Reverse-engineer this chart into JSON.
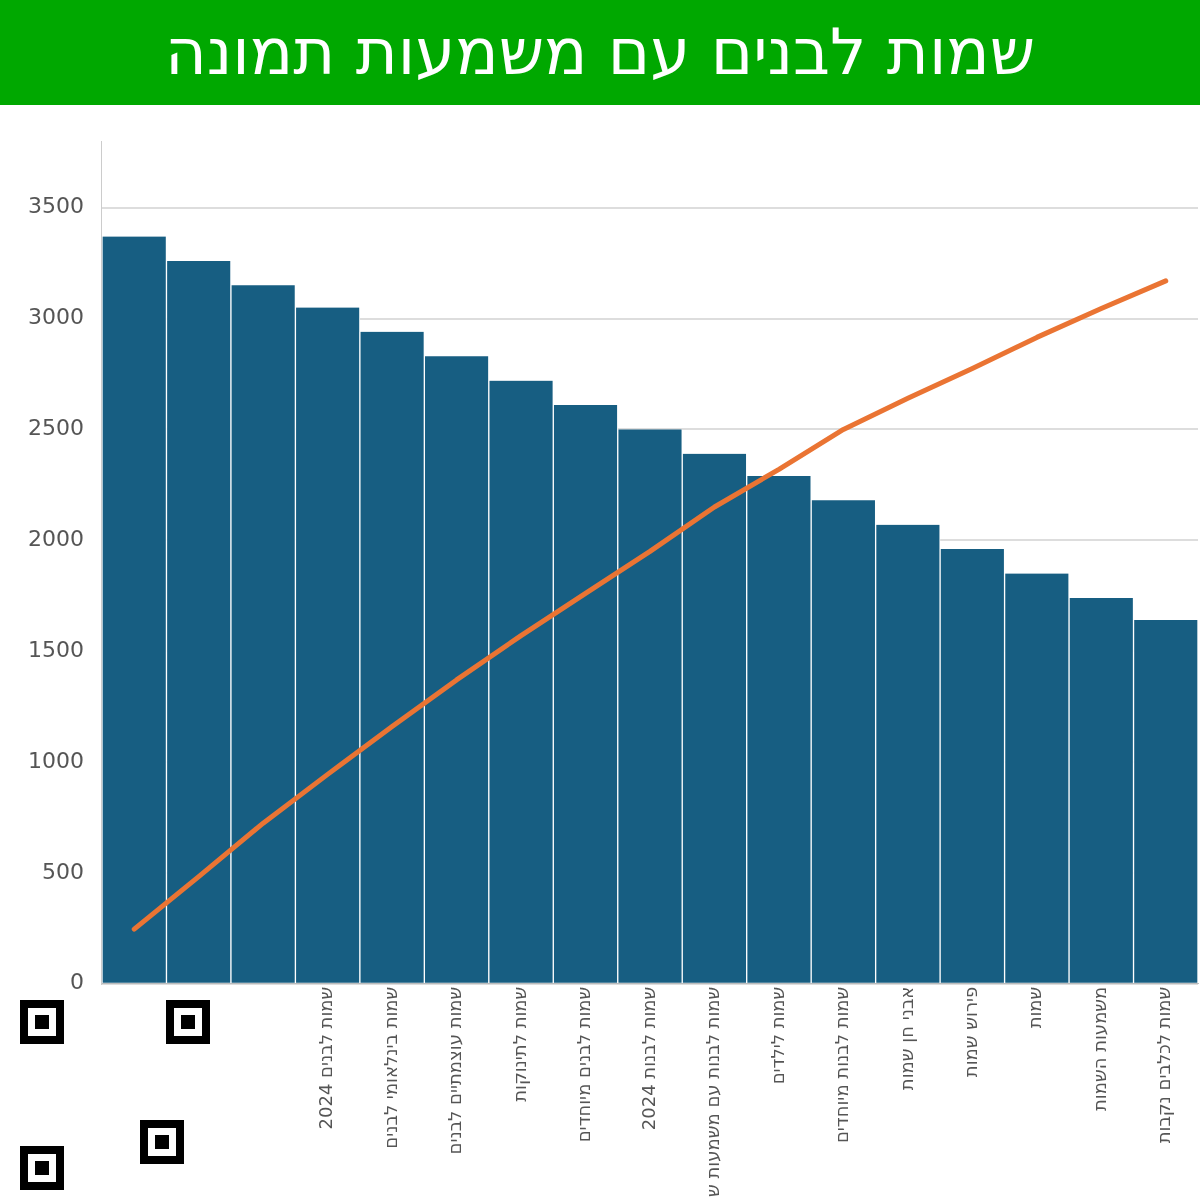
{
  "chart_data": {
    "type": "bar",
    "title": "שמות לבנים עם משמעות תמונה",
    "categories": [
      null,
      null,
      null,
      "שמות לבנים 2024",
      "שמות בינלאומי לבנים",
      "שמות עוצמתיים לבנים",
      "שמות לתינוקות",
      "שמות לבנים מיוחדים",
      "שמות לבנות 2024",
      "שמות לבנות עם משמעות ש",
      "שמות לילדים",
      "שמות לבנות מיוחדים",
      "אבני חן שמות",
      "פירוש שמות",
      "שמות",
      "משמעות השמות",
      "שמות לכלבים נקבות"
    ],
    "series": [
      {
        "color": "#175e82",
        "values": [
          3370,
          3260,
          3150,
          3050,
          2940,
          2830,
          2720,
          2610,
          2500,
          2390,
          2290,
          2180,
          2070,
          1960,
          1850,
          1740,
          1640
        ]
      },
      {
        "type": "line",
        "color": "#ea7433",
        "values": [
          246,
          483,
          724,
          944,
          1160,
          1370,
          1570,
          1760,
          1950,
          2150,
          2320,
          2500,
          2640,
          2775,
          2915,
          3045,
          3170
        ]
      }
    ],
    "ylim": [
      0,
      3800
    ],
    "yticks": [
      0,
      500,
      1000,
      1500,
      2000,
      2500,
      3000,
      3500
    ],
    "grid": "y",
    "legend": false,
    "marker": "none",
    "line_style": "solid"
  }
}
